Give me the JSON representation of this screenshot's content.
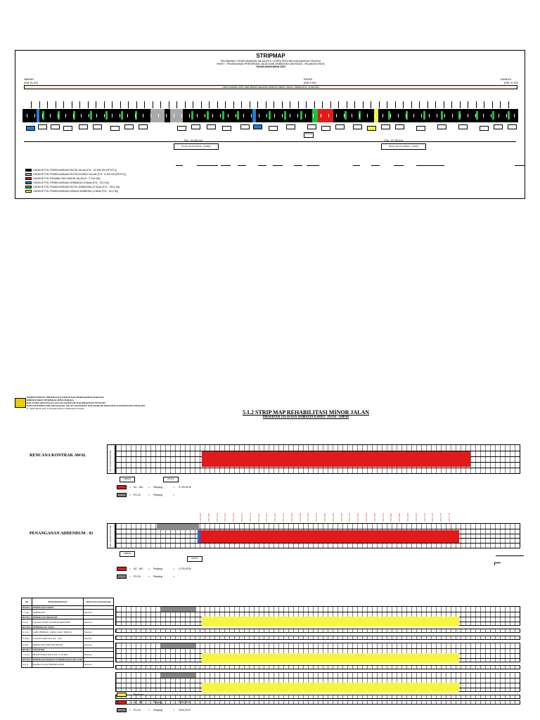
{
  "top_map": {
    "title": "STRIPMAP",
    "subtitle_1": "PELEBARAN / PEMELIHARAAN JALAN (DTK / KSPN) PROVINSI KALIMANTAN TENGAH",
    "subtitle_2": "PAKET : PENANGANAN PRESERVASI JALAN DAN JEMBATAN KASONGAN - PALANGKA RAYA",
    "subtitle_3": "TAHUN ANGGARAN 2022",
    "left_city": "AMPAH",
    "left_km": "(KM 21,00)",
    "mid_city": "PATAS",
    "mid_km": "(KM 0,00)",
    "right_city": "KANDUI",
    "right_km": "(KM 27,00)",
    "road_label": "LINK 6 KANDUI - BTS. KAB. BARITO SELATAN / BARITO TIMUR - PATAS - AMPAH (PJL. 71,500 KM)",
    "span_left_label": "Pjg : 34,50 Km",
    "span_right_label": "Pjg : 37,00 Km",
    "section_left": "RUAS JALAN PATAS - AMPAH",
    "section_right": "RUAS JALAN KANDUI - PATAS",
    "center_box": "KRONOL",
    "colors": {
      "black": "#000000",
      "gray": "#a9a9a9",
      "red": "#e31a1a",
      "blue": "#1f7fd6",
      "green": "#1fbf3a",
      "yellow": "#f2f23a",
      "road": "#f6ecd8"
    },
    "legend": [
      {
        "color": "#000000",
        "label": "LINGKUP POL PEMELIHARAAN RUTIN JALAN (PJL : 62,500 KM (PFSTC))"
      },
      {
        "color": "#a9a9a9",
        "label": "LINGKUP POL PEMELIHARAAN RUTIN KONDISI JALAN (PJL : 6,200 KM (RFSTC))"
      },
      {
        "color": "#e31a1a",
        "label": "LINGKUP POL REHABILITASI MINOR JALAN (P : 2,720 KM)"
      },
      {
        "color": "#1f7fd6",
        "label": "LINGKUP POL PEMELIHARAAN JEMBATAN (3 Buah (PJL : 33,0 M))"
      },
      {
        "color": "#1fbf3a",
        "label": "LINGKUP POL PEMELIHARAAN RUTIN JEMBATAN (12 Buah (PJL : 232,0 M))"
      },
      {
        "color": "#f2f23a",
        "label": "LINGKUP POL PEMELIHARAAN SEMUA JEMBATAN (3 Buah (PJL : 62,0 M))"
      }
    ]
  },
  "lower_map": {
    "org_1": "KEMENTERIAN PEKERJAAN UMUM DAN PERUMAHAN RAKYAT",
    "org_2": "DIREKTORAT JENDERAL BINA MARGA",
    "org_3": "BALAI PELAKSANAAN JALAN NASIONAL KALIMANTAN TENGAH",
    "org_4": "SATUAN KERJA PELAKSANAAN JALAN NASIONAL WILAYAH III PROVINSI KALIMANTAN TENGAH",
    "org_5": "Jl. Tjilik Riwut Km. 6 Palangka Raya, Kalimantan Tengah",
    "title": "5.1.2 STRIP MAP REHABILITASI MINOR JALAN",
    "subtitle": "PRESERVASI JALAN DAN JEMBATAN KANDUI - PATAS - AMPAH",
    "section_1": "RENCANA KONTRAK AWAL",
    "section_2": "PENANGANAN ADDENDUM - 01",
    "side_label": "STA : 000+000 s/d 000+000",
    "box_left": "AMPAH",
    "box_mid": "PATAS",
    "legend_1": [
      {
        "color": "#e31a1a",
        "code": "AC - WC",
        "label": "Panjang",
        "value": "2,720,00 M"
      },
      {
        "color": "#808080",
        "code": "PU 04",
        "label": "Panjang",
        "value": ""
      }
    ],
    "legend_2": [
      {
        "color": "#e31a1a",
        "code": "AC - WC",
        "label": "Panjang",
        "value": "2,720,00 M"
      },
      {
        "color": "#808080",
        "code": "PU 04",
        "label": "Panjang",
        "value": ""
      }
    ],
    "legend_3": [
      {
        "color": "#f2f23a",
        "code": "Realisasi",
        "label": "",
        "value": ""
      },
      {
        "color": "#e31a1a",
        "code": "AC - WC",
        "label": "Panjang",
        "value": "2000,00  M"
      },
      {
        "color": "#808080",
        "code": "PU 04",
        "label": "Panjang",
        "value": "4200,00  M"
      }
    ],
    "table": {
      "headers": [
        "NO",
        "JENIS PEKERJAAN",
        "RENCANA & REALISASI"
      ],
      "rows": [
        {
          "no": "DIVISI 1",
          "name": "PEKERJAAN UMUM",
          "status": ""
        },
        {
          "no": "1.2.1(1)",
          "name": "MOBILISASI",
          "status": "Rencana"
        },
        {
          "no": "DIVISI 2",
          "name": "PEKERJAAN DRAINASE",
          "status": ""
        },
        {
          "no": "2.2.(1)",
          "name": "GALIAN UNTUK SELOKAN DRAINASE",
          "status": "Rencana"
        },
        {
          "no": "DIVISI 6",
          "name": "PERKERASAN ASPAL",
          "status": ""
        },
        {
          "no": "6.1 (2a)",
          "name": "LAPIS PEREKAT - ASPAL CAIR / EMULSI",
          "status": "Rencana"
        },
        {
          "no": "6.3 (6a)",
          "name": "LASTON LAPIS AUS (AC - WC)",
          "status": "Rencana"
        },
        {
          "no": "6.3 (9)",
          "name": "BAHAN ANTI PENGELUPASAN",
          "status": "Rencana"
        },
        {
          "no": "DIVISI 7",
          "name": "STRUKTUR",
          "status": ""
        },
        {
          "no": "7.1 (5a)",
          "name": "BETON STRUKTUR K-250 / fc 20 MPa",
          "status": "Rencana"
        },
        {
          "no": "DIVISI 9",
          "name": "PEKERJAAN HARIAN & PEKERJAAN LAIN-LAIN",
          "status": ""
        },
        {
          "no": "9.2 (1)",
          "name": "MARKA JALAN TERMOPLASTIK",
          "status": "Rencana"
        }
      ]
    },
    "red_station_labels": [
      "STA 0+025",
      "STA 0+050",
      "STA 0+075",
      "STA 0+100",
      "STA 0+125",
      "STA 0+150",
      "STA 0+175",
      "STA 0+200",
      "STA 0+225",
      "STA 0+250",
      "STA 0+275",
      "STA 0+300",
      "STA 0+325",
      "STA 0+350",
      "STA 0+375",
      "STA 0+400",
      "STA 0+425",
      "STA 0+450",
      "STA 0+475",
      "STA 0+500",
      "STA 0+525",
      "STA 0+550",
      "STA 0+575",
      "STA 0+600",
      "STA 0+625",
      "STA 0+650",
      "STA 0+675",
      "STA 0+700",
      "STA 0+725",
      "STA 0+750",
      "STA 0+775"
    ],
    "colors": {
      "red": "#e31a1a",
      "gray": "#8a8a8a",
      "yellow": "#f5f542",
      "blue": "#2b5fd0"
    }
  }
}
